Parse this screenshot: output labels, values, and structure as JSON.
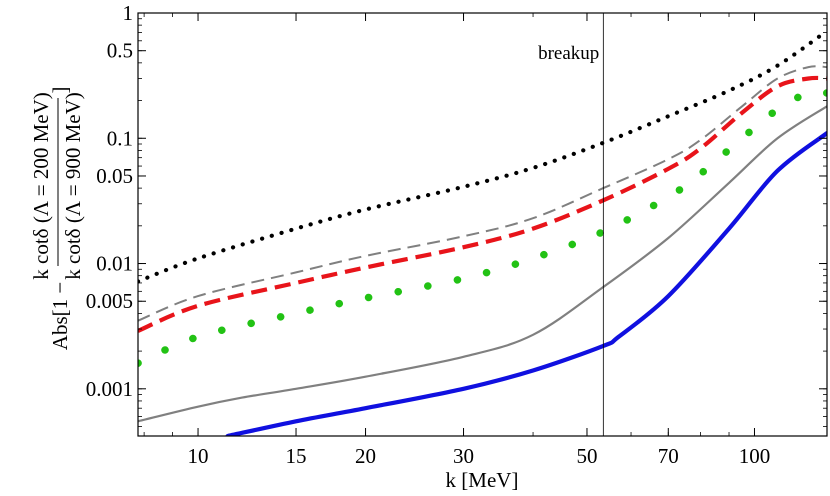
{
  "chart_data": {
    "type": "line",
    "title": "",
    "xlabel": "k [MeV]",
    "ylabel": {
      "prefix": "Abs[1 −",
      "numerator": "k cotδ (Λ = 200 MeV)",
      "denominator": "k cotδ (Λ = 900 MeV)",
      "suffix": "]"
    },
    "xscale": "log",
    "yscale": "log",
    "xlim": [
      7.8,
      135
    ],
    "ylim": [
      0.00042,
      1
    ],
    "xticks": [
      {
        "value": 10,
        "label": "10"
      },
      {
        "value": 15,
        "label": "15"
      },
      {
        "value": 20,
        "label": "20"
      },
      {
        "value": 30,
        "label": "30"
      },
      {
        "value": 50,
        "label": "50"
      },
      {
        "value": 70,
        "label": "70"
      },
      {
        "value": 100,
        "label": "100"
      }
    ],
    "yticks": [
      {
        "value": 0.001,
        "label": "0.001"
      },
      {
        "value": 0.005,
        "label": "0.005"
      },
      {
        "value": 0.01,
        "label": "0.01"
      },
      {
        "value": 0.05,
        "label": "0.05"
      },
      {
        "value": 0.1,
        "label": "0.1"
      },
      {
        "value": 0.5,
        "label": "0.5"
      },
      {
        "value": 1,
        "label": "1"
      }
    ],
    "annotation": {
      "label": "breakup",
      "x": 53.5
    },
    "series": [
      {
        "name": "black-dotted",
        "color": "#000000",
        "style": "dotted",
        "x": [
          7.8,
          10,
          15,
          20,
          30,
          40,
          53.5,
          70,
          90,
          110,
          135
        ],
        "y": [
          0.0072,
          0.011,
          0.019,
          0.027,
          0.041,
          0.058,
          0.092,
          0.15,
          0.24,
          0.38,
          0.72
        ]
      },
      {
        "name": "gray-dashed",
        "color": "#808080",
        "style": "dashed",
        "x": [
          7.8,
          10,
          15,
          20,
          30,
          40,
          53.5,
          70,
          80,
          95,
          110,
          125,
          135
        ],
        "y": [
          0.0035,
          0.0055,
          0.0085,
          0.0115,
          0.0165,
          0.023,
          0.04,
          0.068,
          0.097,
          0.18,
          0.3,
          0.37,
          0.37
        ]
      },
      {
        "name": "red-dashed",
        "color": "#e8141a",
        "style": "dashed",
        "x": [
          7.8,
          10,
          15,
          20,
          30,
          40,
          53.5,
          70,
          80,
          95,
          110,
          125,
          135
        ],
        "y": [
          0.0029,
          0.0046,
          0.007,
          0.0093,
          0.0135,
          0.019,
          0.032,
          0.057,
          0.083,
          0.16,
          0.26,
          0.3,
          0.3
        ]
      },
      {
        "name": "green-dotted",
        "color": "#22c214",
        "style": "bigdots",
        "x": [
          7.8,
          10,
          15,
          20,
          30,
          40,
          53.5,
          70,
          80,
          95,
          110,
          125,
          135
        ],
        "y": [
          0.0016,
          0.0026,
          0.004,
          0.0053,
          0.0076,
          0.011,
          0.018,
          0.034,
          0.052,
          0.1,
          0.17,
          0.23,
          0.23
        ]
      },
      {
        "name": "gray-solid",
        "color": "#808080",
        "style": "solid",
        "x": [
          7.8,
          10,
          12,
          15,
          20,
          30,
          40,
          53.5,
          70,
          90,
          110,
          135
        ],
        "y": [
          0.00055,
          0.00072,
          0.00085,
          0.001,
          0.00125,
          0.0018,
          0.0027,
          0.0065,
          0.016,
          0.044,
          0.1,
          0.18
        ]
      },
      {
        "name": "blue-solid",
        "color": "#1010e0",
        "style": "solid",
        "x": [
          11.3,
          15,
          20,
          30,
          40,
          53.5,
          57,
          70,
          90,
          110,
          135
        ],
        "y": [
          0.00042,
          0.00055,
          0.0007,
          0.001,
          0.0014,
          0.0022,
          0.0026,
          0.0055,
          0.019,
          0.055,
          0.11
        ]
      }
    ]
  }
}
